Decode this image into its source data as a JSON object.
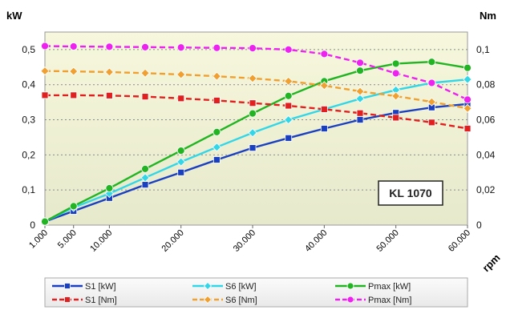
{
  "chart_data": {
    "type": "line",
    "title": "",
    "left_axis": {
      "unit": "kW",
      "ticks": [
        "0",
        "0,1",
        "0,2",
        "0,3",
        "0,4",
        "0,5"
      ],
      "ylim": [
        0,
        0.55
      ]
    },
    "right_axis": {
      "unit": "Nm",
      "ticks": [
        "0",
        "0,02",
        "0,04",
        "0,06",
        "0,08",
        "0,1"
      ],
      "ylim": [
        0,
        0.11
      ]
    },
    "x_axis": {
      "unit": "rpm",
      "x": [
        1000,
        5000,
        10000,
        15000,
        20000,
        25000,
        30000,
        35000,
        40000,
        45000,
        50000,
        55000,
        60000
      ],
      "tick_values": [
        1000,
        5000,
        10000,
        20000,
        30000,
        40000,
        50000,
        60000
      ],
      "tick_labels": [
        "1.000",
        "5.000",
        "10.000",
        "20.000",
        "30.000",
        "40.000",
        "50.000",
        "60.000"
      ],
      "xlim": [
        1000,
        60000
      ]
    },
    "grid": "horizontal dotted",
    "model_label": "KL 1070",
    "series": [
      {
        "name": "S1 [kW]",
        "axis": "left",
        "color": "#1a3fbf",
        "marker": "square",
        "dashed": false,
        "values": [
          0.01,
          0.04,
          0.077,
          0.115,
          0.15,
          0.186,
          0.22,
          0.248,
          0.275,
          0.3,
          0.32,
          0.335,
          0.345
        ]
      },
      {
        "name": "S6 [kW]",
        "axis": "left",
        "color": "#33d6e6",
        "marker": "diamond",
        "dashed": false,
        "values": [
          0.01,
          0.05,
          0.09,
          0.135,
          0.18,
          0.222,
          0.263,
          0.3,
          0.33,
          0.36,
          0.385,
          0.405,
          0.415
        ]
      },
      {
        "name": "Pmax [kW]",
        "axis": "left",
        "color": "#22b422",
        "marker": "circle",
        "dashed": false,
        "values": [
          0.01,
          0.054,
          0.105,
          0.16,
          0.212,
          0.265,
          0.318,
          0.368,
          0.41,
          0.44,
          0.46,
          0.465,
          0.448
        ]
      },
      {
        "name": "S1 [Nm]",
        "axis": "right",
        "color": "#e02020",
        "marker": "square",
        "dashed": true,
        "values": [
          0.074,
          0.074,
          0.0738,
          0.0732,
          0.0722,
          0.071,
          0.0695,
          0.068,
          0.066,
          0.0638,
          0.0612,
          0.0585,
          0.055
        ]
      },
      {
        "name": "S6 [Nm]",
        "axis": "right",
        "color": "#f0a030",
        "marker": "diamond",
        "dashed": true,
        "values": [
          0.0878,
          0.0876,
          0.0872,
          0.0866,
          0.0858,
          0.0848,
          0.0836,
          0.082,
          0.0795,
          0.0762,
          0.0735,
          0.0702,
          0.0665
        ]
      },
      {
        "name": "Pmax [Nm]",
        "axis": "right",
        "color": "#ee22ee",
        "marker": "circle",
        "dashed": true,
        "values": [
          0.102,
          0.1018,
          0.1016,
          0.1014,
          0.1012,
          0.101,
          0.1008,
          0.1,
          0.0975,
          0.0925,
          0.0865,
          0.081,
          0.0715
        ]
      }
    ],
    "legend": {
      "placement": "bottom",
      "order": [
        "S1 [kW]",
        "S6 [kW]",
        "Pmax [kW]",
        "S1 [Nm]",
        "S6 [Nm]",
        "Pmax [Nm]"
      ]
    }
  }
}
